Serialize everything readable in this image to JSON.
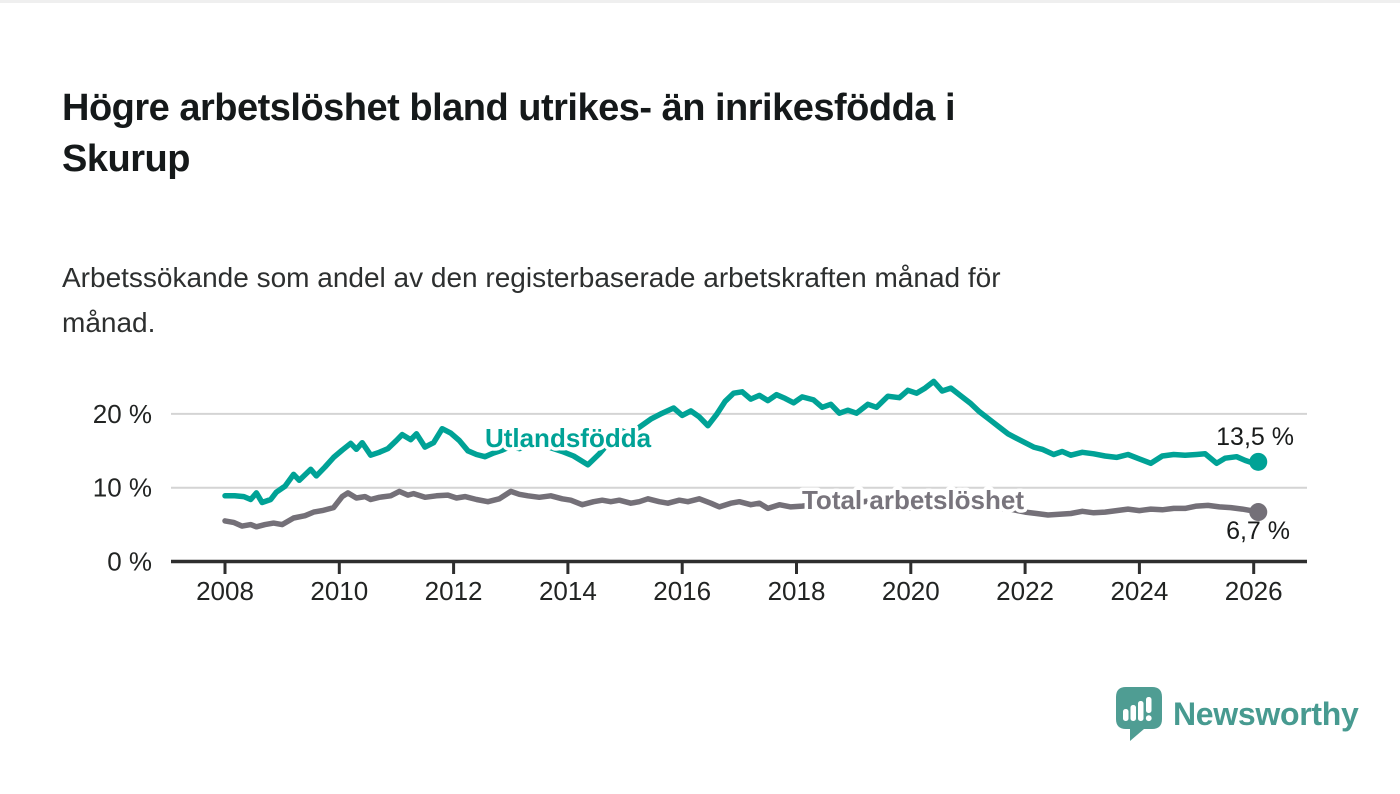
{
  "header": {
    "title": "Högre arbetslöshet bland utrikes- än inrikesfödda i\nSkurup",
    "subtitle": "Arbetssökande som andel av den registerbaserade arbetskraften månad för\nmånad."
  },
  "branding": {
    "logo_text": "Newsworthy",
    "logo_color": "#479a90"
  },
  "colors": {
    "series_foreign_born": "#00a296",
    "series_total": "#747078",
    "gridline": "#d4d4d4",
    "axis": "#2e2e2e",
    "text_dark": "#15191a"
  },
  "chart_data": {
    "type": "line",
    "title": "Högre arbetslöshet bland utrikes- än inrikesfödda i Skurup",
    "subtitle": "Arbetssökande som andel av den registerbaserade arbetskraften månad för månad.",
    "xlabel": "",
    "ylabel": "",
    "x_range": [
      2007.9,
      2026.9
    ],
    "ylim": [
      0,
      25.5
    ],
    "grid": "horizontal",
    "legend_position": "inline-annotations",
    "x_ticks": [
      2008,
      2010,
      2012,
      2014,
      2016,
      2018,
      2020,
      2022,
      2024,
      2026
    ],
    "y_ticks": [
      {
        "value": 0,
        "label": "0 %"
      },
      {
        "value": 10,
        "label": "10 %"
      },
      {
        "value": 20,
        "label": "20 %"
      }
    ],
    "series": [
      {
        "name": "Utlandsfödda",
        "color": "#00a296",
        "end_label": "13,5 %",
        "end_value": 13.5,
        "points": [
          [
            2008.0,
            8.9
          ],
          [
            2008.17,
            8.9
          ],
          [
            2008.33,
            8.8
          ],
          [
            2008.45,
            8.4
          ],
          [
            2008.55,
            9.3
          ],
          [
            2008.65,
            8.0
          ],
          [
            2008.8,
            8.4
          ],
          [
            2008.9,
            9.4
          ],
          [
            2009.05,
            10.2
          ],
          [
            2009.2,
            11.8
          ],
          [
            2009.3,
            11.0
          ],
          [
            2009.5,
            12.5
          ],
          [
            2009.6,
            11.6
          ],
          [
            2009.75,
            12.8
          ],
          [
            2009.9,
            14.1
          ],
          [
            2010.05,
            15.1
          ],
          [
            2010.2,
            16.0
          ],
          [
            2010.3,
            15.2
          ],
          [
            2010.4,
            16.1
          ],
          [
            2010.55,
            14.4
          ],
          [
            2010.7,
            14.8
          ],
          [
            2010.85,
            15.3
          ],
          [
            2011.0,
            16.4
          ],
          [
            2011.1,
            17.2
          ],
          [
            2011.25,
            16.5
          ],
          [
            2011.35,
            17.3
          ],
          [
            2011.5,
            15.5
          ],
          [
            2011.65,
            16.1
          ],
          [
            2011.8,
            18.0
          ],
          [
            2011.95,
            17.4
          ],
          [
            2012.1,
            16.4
          ],
          [
            2012.25,
            15.0
          ],
          [
            2012.4,
            14.5
          ],
          [
            2012.55,
            14.2
          ],
          [
            2012.7,
            14.7
          ],
          [
            2012.85,
            15.1
          ],
          [
            2013.0,
            15.6
          ],
          [
            2013.15,
            15.3
          ],
          [
            2013.3,
            15.7
          ],
          [
            2013.5,
            15.9
          ],
          [
            2013.7,
            15.4
          ],
          [
            2013.9,
            14.9
          ],
          [
            2014.1,
            14.3
          ],
          [
            2014.35,
            13.1
          ],
          [
            2014.55,
            14.6
          ],
          [
            2014.75,
            16.4
          ],
          [
            2014.9,
            17.9
          ],
          [
            2015.05,
            17.3
          ],
          [
            2015.25,
            18.2
          ],
          [
            2015.45,
            19.3
          ],
          [
            2015.65,
            20.1
          ],
          [
            2015.85,
            20.8
          ],
          [
            2016.0,
            19.8
          ],
          [
            2016.15,
            20.4
          ],
          [
            2016.3,
            19.6
          ],
          [
            2016.45,
            18.4
          ],
          [
            2016.6,
            19.9
          ],
          [
            2016.75,
            21.7
          ],
          [
            2016.9,
            22.8
          ],
          [
            2017.05,
            23.0
          ],
          [
            2017.2,
            22.0
          ],
          [
            2017.35,
            22.5
          ],
          [
            2017.5,
            21.8
          ],
          [
            2017.65,
            22.6
          ],
          [
            2017.8,
            22.1
          ],
          [
            2017.95,
            21.5
          ],
          [
            2018.1,
            22.3
          ],
          [
            2018.3,
            21.9
          ],
          [
            2018.45,
            20.9
          ],
          [
            2018.6,
            21.3
          ],
          [
            2018.75,
            20.1
          ],
          [
            2018.9,
            20.5
          ],
          [
            2019.05,
            20.1
          ],
          [
            2019.25,
            21.3
          ],
          [
            2019.4,
            20.9
          ],
          [
            2019.6,
            22.4
          ],
          [
            2019.8,
            22.2
          ],
          [
            2019.95,
            23.2
          ],
          [
            2020.1,
            22.8
          ],
          [
            2020.25,
            23.5
          ],
          [
            2020.4,
            24.4
          ],
          [
            2020.55,
            23.1
          ],
          [
            2020.7,
            23.5
          ],
          [
            2020.9,
            22.3
          ],
          [
            2021.05,
            21.4
          ],
          [
            2021.2,
            20.3
          ],
          [
            2021.4,
            19.1
          ],
          [
            2021.55,
            18.2
          ],
          [
            2021.7,
            17.3
          ],
          [
            2021.85,
            16.7
          ],
          [
            2022.0,
            16.1
          ],
          [
            2022.15,
            15.5
          ],
          [
            2022.3,
            15.2
          ],
          [
            2022.5,
            14.5
          ],
          [
            2022.65,
            14.9
          ],
          [
            2022.8,
            14.4
          ],
          [
            2023.0,
            14.8
          ],
          [
            2023.2,
            14.6
          ],
          [
            2023.4,
            14.3
          ],
          [
            2023.6,
            14.1
          ],
          [
            2023.8,
            14.5
          ],
          [
            2024.0,
            13.9
          ],
          [
            2024.2,
            13.3
          ],
          [
            2024.4,
            14.3
          ],
          [
            2024.6,
            14.5
          ],
          [
            2024.8,
            14.4
          ],
          [
            2025.0,
            14.5
          ],
          [
            2025.15,
            14.6
          ],
          [
            2025.35,
            13.3
          ],
          [
            2025.5,
            14.0
          ],
          [
            2025.7,
            14.2
          ],
          [
            2025.85,
            13.7
          ],
          [
            2026.0,
            13.3
          ],
          [
            2026.08,
            13.5
          ]
        ]
      },
      {
        "name": "Total arbetslöshet",
        "color": "#747078",
        "end_label": "6,7 %",
        "end_value": 6.7,
        "points": [
          [
            2008.0,
            5.5
          ],
          [
            2008.15,
            5.3
          ],
          [
            2008.3,
            4.8
          ],
          [
            2008.45,
            5.0
          ],
          [
            2008.55,
            4.7
          ],
          [
            2008.7,
            5.0
          ],
          [
            2008.85,
            5.2
          ],
          [
            2009.0,
            5.0
          ],
          [
            2009.2,
            5.9
          ],
          [
            2009.4,
            6.2
          ],
          [
            2009.55,
            6.7
          ],
          [
            2009.7,
            6.9
          ],
          [
            2009.9,
            7.3
          ],
          [
            2010.05,
            8.8
          ],
          [
            2010.15,
            9.3
          ],
          [
            2010.3,
            8.6
          ],
          [
            2010.45,
            8.8
          ],
          [
            2010.55,
            8.4
          ],
          [
            2010.7,
            8.7
          ],
          [
            2010.9,
            8.9
          ],
          [
            2011.05,
            9.5
          ],
          [
            2011.2,
            9.0
          ],
          [
            2011.3,
            9.2
          ],
          [
            2011.5,
            8.7
          ],
          [
            2011.7,
            8.9
          ],
          [
            2011.9,
            9.0
          ],
          [
            2012.05,
            8.6
          ],
          [
            2012.2,
            8.8
          ],
          [
            2012.4,
            8.4
          ],
          [
            2012.6,
            8.1
          ],
          [
            2012.8,
            8.5
          ],
          [
            2013.0,
            9.5
          ],
          [
            2013.15,
            9.1
          ],
          [
            2013.3,
            8.9
          ],
          [
            2013.5,
            8.7
          ],
          [
            2013.7,
            8.9
          ],
          [
            2013.9,
            8.5
          ],
          [
            2014.05,
            8.3
          ],
          [
            2014.25,
            7.7
          ],
          [
            2014.45,
            8.1
          ],
          [
            2014.6,
            8.3
          ],
          [
            2014.75,
            8.1
          ],
          [
            2014.9,
            8.3
          ],
          [
            2015.1,
            7.9
          ],
          [
            2015.25,
            8.1
          ],
          [
            2015.4,
            8.5
          ],
          [
            2015.6,
            8.1
          ],
          [
            2015.75,
            7.9
          ],
          [
            2015.95,
            8.3
          ],
          [
            2016.1,
            8.1
          ],
          [
            2016.3,
            8.5
          ],
          [
            2016.5,
            7.9
          ],
          [
            2016.65,
            7.4
          ],
          [
            2016.85,
            7.9
          ],
          [
            2017.0,
            8.1
          ],
          [
            2017.2,
            7.7
          ],
          [
            2017.35,
            7.9
          ],
          [
            2017.5,
            7.2
          ],
          [
            2017.7,
            7.7
          ],
          [
            2017.9,
            7.4
          ],
          [
            2018.1,
            7.5
          ],
          [
            2018.3,
            7.7
          ],
          [
            2018.5,
            7.5
          ],
          [
            2018.7,
            7.3
          ],
          [
            2018.9,
            7.6
          ],
          [
            2019.1,
            8.0
          ],
          [
            2019.25,
            8.2
          ],
          [
            2019.45,
            7.7
          ],
          [
            2019.6,
            7.4
          ],
          [
            2019.8,
            7.1
          ],
          [
            2020.0,
            7.3
          ],
          [
            2020.2,
            7.9
          ],
          [
            2020.4,
            8.5
          ],
          [
            2020.6,
            8.6
          ],
          [
            2020.8,
            8.4
          ],
          [
            2021.0,
            8.1
          ],
          [
            2021.2,
            7.8
          ],
          [
            2021.4,
            7.5
          ],
          [
            2021.6,
            7.2
          ],
          [
            2021.8,
            7.0
          ],
          [
            2022.0,
            6.7
          ],
          [
            2022.2,
            6.5
          ],
          [
            2022.4,
            6.3
          ],
          [
            2022.6,
            6.4
          ],
          [
            2022.8,
            6.5
          ],
          [
            2023.0,
            6.8
          ],
          [
            2023.2,
            6.6
          ],
          [
            2023.4,
            6.7
          ],
          [
            2023.6,
            6.9
          ],
          [
            2023.8,
            7.1
          ],
          [
            2024.0,
            6.9
          ],
          [
            2024.2,
            7.1
          ],
          [
            2024.4,
            7.0
          ],
          [
            2024.6,
            7.2
          ],
          [
            2024.8,
            7.2
          ],
          [
            2025.0,
            7.5
          ],
          [
            2025.2,
            7.6
          ],
          [
            2025.4,
            7.4
          ],
          [
            2025.6,
            7.3
          ],
          [
            2025.8,
            7.1
          ],
          [
            2025.95,
            6.9
          ],
          [
            2026.08,
            6.7
          ]
        ]
      }
    ]
  }
}
